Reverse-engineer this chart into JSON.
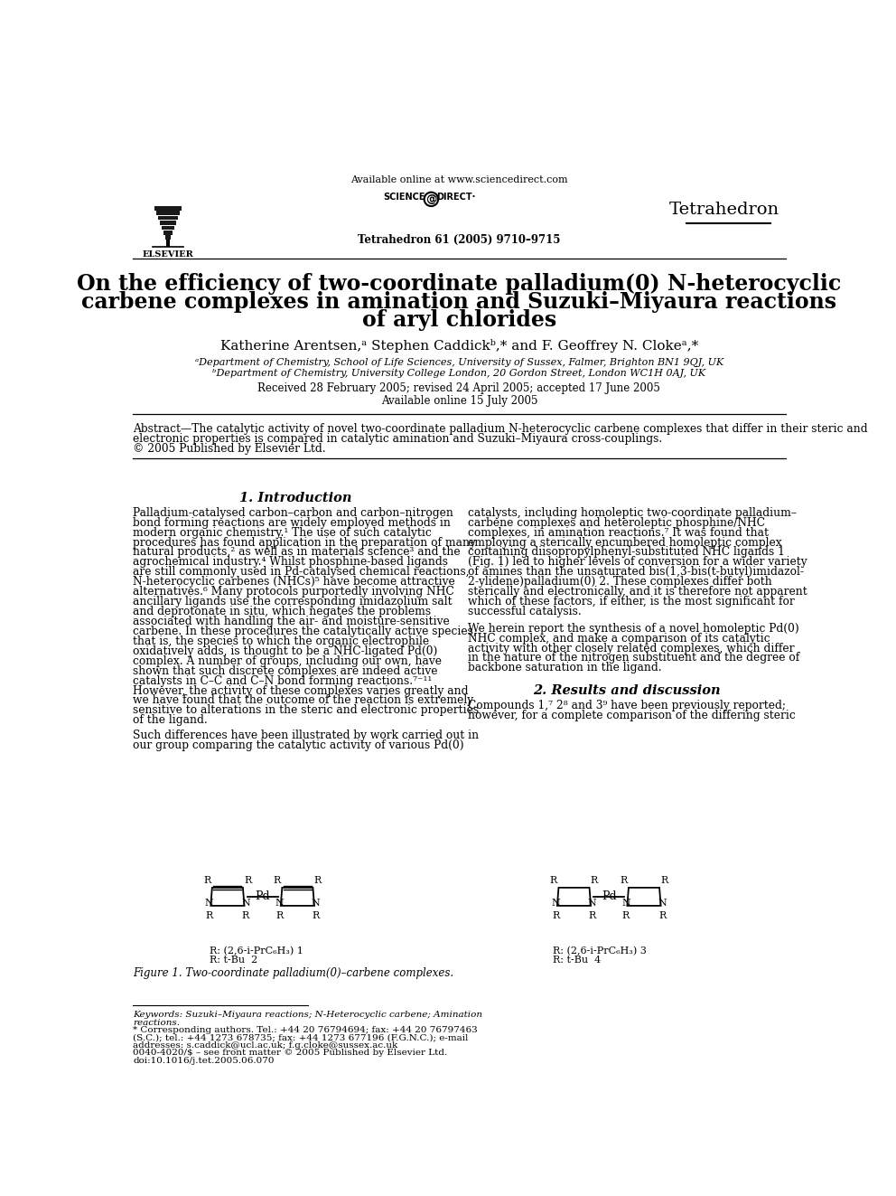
{
  "title_line1": "On the efficiency of two-coordinate palladium(0) N-heterocyclic",
  "title_line2": "carbene complexes in amination and Suzuki–Miyaura reactions",
  "title_line3": "of aryl chlorides",
  "available_online_header": "Available online at www.sciencedirect.com",
  "journal_name": "Tetrahedron",
  "journal_ref": "Tetrahedron 61 (2005) 9710–9715",
  "authors": "Katherine Arentsen,ᵃ Stephen Caddickᵇ,* and F. Geoffrey N. Clokeᵃ,*",
  "affil_a": "ᵃDepartment of Chemistry, School of Life Sciences, University of Sussex, Falmer, Brighton BN1 9QJ, UK",
  "affil_b": "ᵇDepartment of Chemistry, University College London, 20 Gordon Street, London WC1H 0AJ, UK",
  "received": "Received 28 February 2005; revised 24 April 2005; accepted 17 June 2005",
  "available_online": "Available online 15 July 2005",
  "abstract_line1": "Abstract—The catalytic activity of novel two-coordinate palladium N-heterocyclic carbene complexes that differ in their steric and",
  "abstract_line2": "electronic properties is compared in catalytic amination and Suzuki–Miyaura cross-couplings.",
  "abstract_line3": "© 2005 Published by Elsevier Ltd.",
  "section1_title": "1. Introduction",
  "left_col_lines": [
    "Palladium-catalysed carbon–carbon and carbon–nitrogen",
    "bond forming reactions are widely employed methods in",
    "modern organic chemistry.¹ The use of such catalytic",
    "procedures has found application in the preparation of many",
    "natural products,² as well as in materials science³ and the",
    "agrochemical industry.⁴ Whilst phosphine-based ligands",
    "are still commonly used in Pd-catalysed chemical reactions,",
    "N-heterocyclic carbenes (NHCs)⁵ have become attractive",
    "alternatives.⁶ Many protocols purportedly involving NHC",
    "ancillary ligands use the corresponding imidazolium salt",
    "and deprotonate in situ, which negates the problems",
    "associated with handling the air- and moisture-sensitive",
    "carbene. In these procedures the catalytically active species,",
    "that is, the species to which the organic electrophile",
    "oxidatively adds, is thought to be a NHC-ligated Pd(0)",
    "complex. A number of groups, including our own, have",
    "shown that such discrete complexes are indeed active",
    "catalysts in C–C and C–N bond forming reactions.⁷⁻¹¹",
    "However, the activity of these complexes varies greatly and",
    "we have found that the outcome of the reaction is extremely",
    "sensitive to alterations in the steric and electronic properties",
    "of the ligand."
  ],
  "left_col_lines2": [
    "Such differences have been illustrated by work carried out in",
    "our group comparing the catalytic activity of various Pd(0)"
  ],
  "right_col_lines": [
    "catalysts, including homoleptic two-coordinate palladium–",
    "carbene complexes and heteroleptic phosphine/NHC",
    "complexes, in amination reactions.⁷ It was found that",
    "employing a sterically encumbered homoleptic complex",
    "containing diisopropylphenyl-substituted NHC ligands 1",
    "(Fig. 1) led to higher levels of conversion for a wider variety",
    "of amines than the unsaturated bis(1,3-bis(t-butyl)imidazol-",
    "2-ylidene)palladium(0) 2. These complexes differ both",
    "sterically and electronically, and it is therefore not apparent",
    "which of these factors, if either, is the most significant for",
    "successful catalysis."
  ],
  "right_col_lines2": [
    "We herein report the synthesis of a novel homoleptic Pd(0)",
    "NHC complex, and make a comparison of its catalytic",
    "activity with other closely related complexes, which differ",
    "in the nature of the nitrogen substituent and the degree of",
    "backbone saturation in the ligand."
  ],
  "section2_title": "2. Results and discussion",
  "results_lines": [
    "Compounds 1,⁷ 2⁸ and 3⁹ have been previously reported;",
    "however, for a complete comparison of the differing steric"
  ],
  "figure_caption": "Figure 1. Two-coordinate palladium(0)–carbene complexes.",
  "figure_label1": "R: (2,6-i-PrC₆H₃) 1",
  "figure_label2": "R: t-Bu  2",
  "figure_label3": "R: (2,6-i-PrC₆H₃) 3",
  "figure_label4": "R: t-Bu  4",
  "doi_text": "doi:10.1016/j.tet.2005.06.070",
  "copyright_text": "0040-4020/$ – see front matter © 2005 Published by Elsevier Ltd.",
  "keywords_line1": "Keywords: Suzuki–Miyaura reactions; N-Heterocyclic carbene; Amination",
  "keywords_line2": "reactions.",
  "corresp_line1": "* Corresponding authors. Tel.: +44 20 76794694; fax: +44 20 76797463",
  "corresp_line2": "(S.C.); tel.: +44 1273 678735; fax: +44 1273 677196 (F.G.N.C.); e-mail",
  "corresp_line3": "addresses: s.caddick@ucl.ac.uk; f.g.cloke@sussex.ac.uk"
}
